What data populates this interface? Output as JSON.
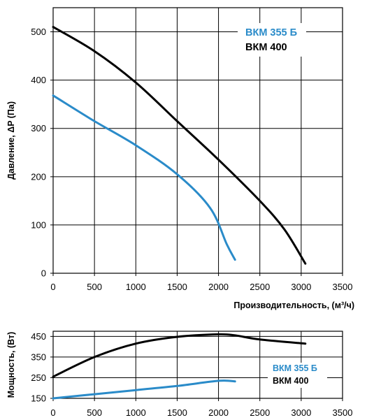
{
  "colors": {
    "vkm355b": "#2a8bc9",
    "vkm400": "#000000",
    "grid": "#000000"
  },
  "chart_data": [
    {
      "type": "line",
      "xlabel": "Производительность, (м³/ч)",
      "ylabel": "Давление, ΔP (Па)",
      "xlim": [
        0,
        3500
      ],
      "ylim": [
        0,
        550
      ],
      "xticks": [
        "0",
        "500",
        "1000",
        "1500",
        "2000",
        "2500",
        "3000",
        "3500"
      ],
      "yticks": [
        "0",
        "100",
        "200",
        "300",
        "400",
        "500"
      ],
      "xtick_values": [
        0,
        500,
        1000,
        1500,
        2000,
        2500,
        3000,
        3500
      ],
      "ytick_values": [
        0,
        100,
        200,
        300,
        400,
        500
      ],
      "grid": true,
      "legend_position": "top-right",
      "series": [
        {
          "name": "ВКМ 355 Б",
          "color": "#2a8bc9",
          "x": [
            0,
            500,
            1000,
            1500,
            1900,
            2100,
            2200
          ],
          "y": [
            368,
            315,
            265,
            205,
            135,
            60,
            28
          ]
        },
        {
          "name": "ВКМ 400",
          "color": "#000000",
          "x": [
            0,
            500,
            1000,
            1500,
            2000,
            2500,
            2800,
            3050
          ],
          "y": [
            510,
            460,
            395,
            315,
            235,
            150,
            90,
            20
          ]
        }
      ]
    },
    {
      "type": "line",
      "ylabel": "Мощность, (Вт)",
      "xlim": [
        0,
        3500
      ],
      "ylim": [
        150,
        475
      ],
      "xticks": [
        "0",
        "500",
        "1000",
        "1500",
        "2000",
        "2500",
        "3000",
        "3500"
      ],
      "yticks": [
        "150",
        "250",
        "350",
        "450"
      ],
      "xtick_values": [
        0,
        500,
        1000,
        1500,
        2000,
        2500,
        3000,
        3500
      ],
      "ytick_values": [
        150,
        250,
        350,
        450
      ],
      "grid": true,
      "legend_position": "bottom-right",
      "series": [
        {
          "name": "ВКМ 355 Б",
          "color": "#2a8bc9",
          "x": [
            0,
            500,
            1000,
            1500,
            2000,
            2200
          ],
          "y": [
            150,
            170,
            190,
            210,
            235,
            232
          ]
        },
        {
          "name": "ВКМ 400",
          "color": "#000000",
          "x": [
            0,
            500,
            1000,
            1500,
            2000,
            2200,
            2500,
            3050
          ],
          "y": [
            255,
            350,
            415,
            448,
            460,
            455,
            435,
            415
          ]
        }
      ]
    }
  ]
}
